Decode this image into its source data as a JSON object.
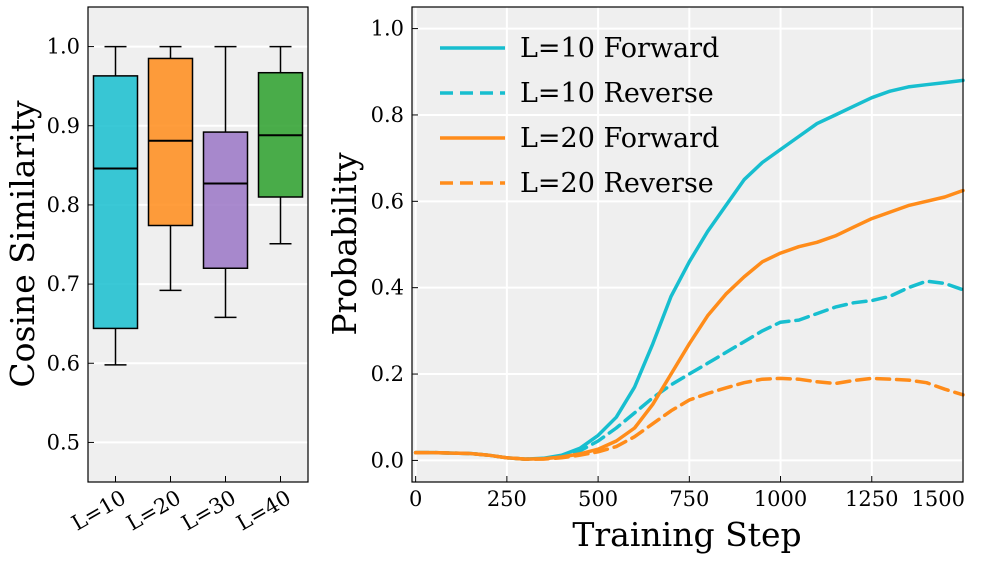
{
  "chart_data": [
    {
      "type": "box",
      "title": "",
      "xlabel": "",
      "ylabel": "Cosine Similarity",
      "ylim": [
        0.45,
        1.05
      ],
      "yticks": [
        0.5,
        0.6,
        0.7,
        0.8,
        0.9,
        1.0
      ],
      "ytick_labels": [
        "0.5",
        "0.6",
        "0.7",
        "0.8",
        "0.9",
        "1.0"
      ],
      "categories": [
        "L=10",
        "L=20",
        "L=30",
        "L=40"
      ],
      "boxes": [
        {
          "label": "L=10",
          "min": 0.598,
          "q1": 0.644,
          "median": 0.846,
          "q3": 0.963,
          "max": 1.0,
          "color": "#17becf"
        },
        {
          "label": "L=20",
          "min": 0.692,
          "q1": 0.774,
          "median": 0.881,
          "q3": 0.985,
          "max": 1.0,
          "color": "#ff8c1a"
        },
        {
          "label": "L=30",
          "min": 0.658,
          "q1": 0.72,
          "median": 0.827,
          "q3": 0.892,
          "max": 1.0,
          "color": "#9a75c6"
        },
        {
          "label": "L=40",
          "min": 0.751,
          "q1": 0.81,
          "median": 0.888,
          "q3": 0.967,
          "max": 1.0,
          "color": "#2ca02c"
        }
      ]
    },
    {
      "type": "line",
      "title": "",
      "xlabel": "Training Step",
      "ylabel": "Probability",
      "xlim": [
        -10,
        1500
      ],
      "ylim": [
        -0.05,
        1.05
      ],
      "xticks": [
        0,
        250,
        500,
        750,
        1000,
        1250,
        1500
      ],
      "xtick_labels": [
        "0",
        "250",
        "500",
        "750",
        "1000",
        "1250",
        "1500"
      ],
      "yticks": [
        0.0,
        0.2,
        0.4,
        0.6,
        0.8,
        1.0
      ],
      "ytick_labels": [
        "0.0",
        "0.2",
        "0.4",
        "0.6",
        "0.8",
        "1.0"
      ],
      "legend_position": "top-left",
      "series": [
        {
          "name": "L=10 Forward",
          "color": "#17becf",
          "dash": "solid",
          "x": [
            0,
            50,
            100,
            150,
            200,
            250,
            300,
            350,
            400,
            450,
            500,
            550,
            600,
            650,
            700,
            750,
            800,
            850,
            900,
            950,
            1000,
            1050,
            1100,
            1150,
            1200,
            1250,
            1300,
            1350,
            1400,
            1450,
            1500
          ],
          "y": [
            0.018,
            0.018,
            0.017,
            0.016,
            0.012,
            0.006,
            0.003,
            0.005,
            0.012,
            0.028,
            0.058,
            0.1,
            0.17,
            0.27,
            0.38,
            0.46,
            0.53,
            0.59,
            0.65,
            0.69,
            0.72,
            0.75,
            0.78,
            0.8,
            0.82,
            0.84,
            0.855,
            0.865,
            0.87,
            0.875,
            0.88
          ]
        },
        {
          "name": "L=10 Reverse",
          "color": "#17becf",
          "dash": "dashed",
          "x": [
            0,
            50,
            100,
            150,
            200,
            250,
            300,
            350,
            400,
            450,
            500,
            550,
            600,
            650,
            700,
            750,
            800,
            850,
            900,
            950,
            1000,
            1050,
            1100,
            1150,
            1200,
            1250,
            1300,
            1350,
            1400,
            1450,
            1500
          ],
          "y": [
            0.018,
            0.018,
            0.017,
            0.016,
            0.012,
            0.006,
            0.003,
            0.004,
            0.01,
            0.022,
            0.045,
            0.075,
            0.11,
            0.145,
            0.175,
            0.2,
            0.225,
            0.25,
            0.275,
            0.3,
            0.32,
            0.325,
            0.34,
            0.355,
            0.365,
            0.37,
            0.38,
            0.4,
            0.415,
            0.41,
            0.395
          ]
        },
        {
          "name": "L=20 Forward",
          "color": "#ff8c1a",
          "dash": "solid",
          "x": [
            0,
            50,
            100,
            150,
            200,
            250,
            300,
            350,
            400,
            450,
            500,
            550,
            600,
            650,
            700,
            750,
            800,
            850,
            900,
            950,
            1000,
            1050,
            1100,
            1150,
            1200,
            1250,
            1300,
            1350,
            1400,
            1450,
            1500
          ],
          "y": [
            0.018,
            0.018,
            0.017,
            0.016,
            0.012,
            0.006,
            0.003,
            0.004,
            0.008,
            0.015,
            0.026,
            0.045,
            0.075,
            0.13,
            0.2,
            0.27,
            0.335,
            0.385,
            0.425,
            0.46,
            0.48,
            0.495,
            0.505,
            0.52,
            0.54,
            0.56,
            0.575,
            0.59,
            0.6,
            0.61,
            0.625
          ]
        },
        {
          "name": "L=20 Reverse",
          "color": "#ff8c1a",
          "dash": "dashed",
          "x": [
            0,
            50,
            100,
            150,
            200,
            250,
            300,
            350,
            400,
            450,
            500,
            550,
            600,
            650,
            700,
            750,
            800,
            850,
            900,
            950,
            1000,
            1050,
            1100,
            1150,
            1200,
            1250,
            1300,
            1350,
            1400,
            1450,
            1500
          ],
          "y": [
            0.018,
            0.018,
            0.017,
            0.016,
            0.012,
            0.006,
            0.003,
            0.003,
            0.006,
            0.012,
            0.02,
            0.032,
            0.055,
            0.085,
            0.115,
            0.14,
            0.155,
            0.168,
            0.18,
            0.188,
            0.19,
            0.188,
            0.182,
            0.178,
            0.185,
            0.19,
            0.188,
            0.186,
            0.18,
            0.165,
            0.152
          ]
        }
      ]
    }
  ]
}
